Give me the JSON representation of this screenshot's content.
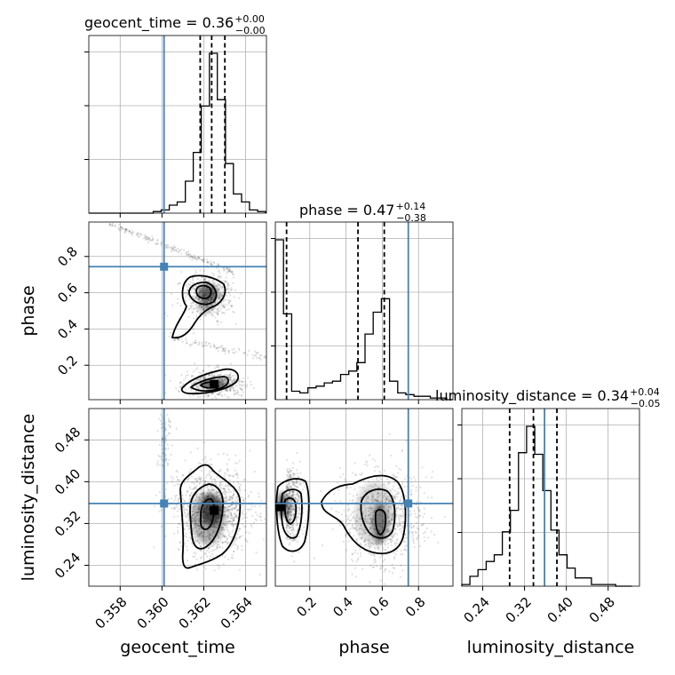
{
  "colors": {
    "truth": "#4682b4",
    "histogram": "#000000",
    "grid": "#b0b0b0",
    "density": "#000000"
  },
  "chart_data": {
    "type": "corner",
    "parameters": [
      "geocent_time",
      "phase",
      "luminosity_distance"
    ],
    "titles": [
      {
        "param": "geocent_time",
        "text": "geocent_time = 0.36",
        "sup": "+0.00",
        "sub": "−0.00"
      },
      {
        "param": "phase",
        "text": "phase = 0.47",
        "sup": "+0.14",
        "sub": "−0.38"
      },
      {
        "param": "luminosity_distance",
        "text": "luminosity_distance = 0.34",
        "sup": "+0.04",
        "sub": "−0.05"
      }
    ],
    "axes": {
      "geocent_time": {
        "range": [
          0.3565,
          0.365
        ],
        "ticks": [
          0.358,
          0.36,
          0.362,
          0.364
        ],
        "tick_labels": [
          "0.358",
          "0.360",
          "0.362",
          "0.364"
        ]
      },
      "phase": {
        "range": [
          0.01,
          0.99
        ],
        "ticks": [
          0.2,
          0.4,
          0.6,
          0.8
        ],
        "tick_labels": [
          "0.2",
          "0.4",
          "0.6",
          "0.8"
        ]
      },
      "luminosity_distance": {
        "range": [
          0.2,
          0.54
        ],
        "ticks": [
          0.24,
          0.32,
          0.4,
          0.48
        ],
        "tick_labels": [
          "0.24",
          "0.32",
          "0.40",
          "0.48"
        ]
      }
    },
    "truths": {
      "geocent_time": 0.3601,
      "phase": 0.7436,
      "luminosity_distance": 0.3583
    },
    "quantiles": {
      "geocent_time": [
        0.36183,
        0.36238,
        0.36301
      ],
      "phase": [
        0.072,
        0.466,
        0.611
      ],
      "luminosity_distance": [
        0.2915,
        0.337,
        0.382
      ]
    },
    "histograms": {
      "geocent_time": {
        "edges": [
          0.3565,
          0.35688,
          0.35727,
          0.35765,
          0.35804,
          0.35842,
          0.35881,
          0.35919,
          0.35958,
          0.35996,
          0.36035,
          0.36073,
          0.36112,
          0.3615,
          0.36188,
          0.36227,
          0.36265,
          0.36304,
          0.36342,
          0.36381,
          0.36419,
          0.36458,
          0.36496
        ],
        "counts": [
          0,
          0,
          0,
          0,
          0,
          0,
          0,
          0,
          1,
          2,
          5,
          7,
          20,
          38,
          67,
          100,
          71,
          31,
          12,
          7,
          2,
          1
        ]
      },
      "phase": {
        "edges": [
          0.01,
          0.055,
          0.1,
          0.145,
          0.19,
          0.235,
          0.28,
          0.325,
          0.37,
          0.415,
          0.46,
          0.505,
          0.55,
          0.595,
          0.64,
          0.685,
          0.73,
          0.775,
          0.82,
          0.865,
          0.91,
          0.955,
          0.99
        ],
        "counts": [
          95,
          51,
          5,
          4,
          7,
          8,
          10,
          11,
          15,
          17,
          22,
          39,
          52,
          60,
          11,
          4,
          3,
          2,
          2,
          1,
          1,
          0
        ]
      },
      "luminosity_distance": {
        "edges": [
          0.2,
          0.2155,
          0.231,
          0.2465,
          0.262,
          0.2775,
          0.293,
          0.3085,
          0.324,
          0.3395,
          0.355,
          0.3705,
          0.386,
          0.4015,
          0.417,
          0.4325,
          0.448,
          0.4635,
          0.479,
          0.4945,
          0.51,
          0.5255
        ],
        "counts": [
          1,
          6,
          10,
          15,
          19,
          33,
          46,
          81,
          97,
          80,
          58,
          34,
          19,
          11,
          5,
          5,
          1,
          1,
          1,
          0,
          0
        ]
      }
    },
    "levels": [
      "39.3%",
      "86.5%",
      "98.9%"
    ],
    "grid": true
  }
}
